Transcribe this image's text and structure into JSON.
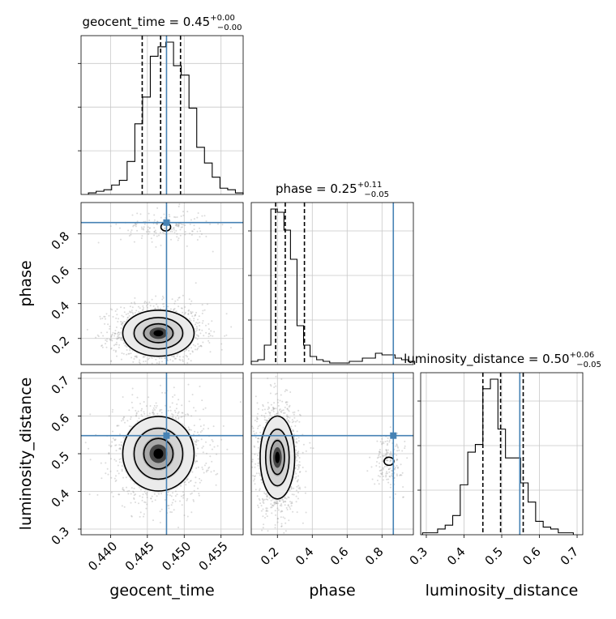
{
  "chart_data": {
    "type": "corner",
    "truth_color": "#4682b4",
    "parameters": [
      {
        "name": "geocent_time",
        "xlabel": "geocent_time",
        "ylabel": "",
        "title_main": "geocent_time = 0.45",
        "title_sup": "+0.00",
        "title_sub": "−0.00",
        "range": [
          0.436,
          0.458
        ],
        "ticks": [
          0.44,
          0.445,
          0.45,
          0.455
        ],
        "tick_labels": [
          "0.440",
          "0.445",
          "0.450",
          "0.455"
        ],
        "truth": 0.4476,
        "quantiles": [
          0.4443,
          0.4468,
          0.4495
        ],
        "hist_edges_start": 0.437,
        "hist_bin_width": 0.00105,
        "hist_counts": [
          1,
          2,
          3,
          6,
          9,
          21,
          45,
          62,
          88,
          94,
          97,
          82,
          76,
          55,
          30,
          20,
          11,
          4,
          3,
          1
        ]
      },
      {
        "name": "phase",
        "xlabel": "phase",
        "ylabel": "phase",
        "title_main": "phase = 0.25",
        "title_sup": "+0.11",
        "title_sub": "−0.05",
        "range": [
          0.05,
          0.98
        ],
        "ticks": [
          0.2,
          0.4,
          0.6,
          0.8
        ],
        "tick_labels": [
          "0.2",
          "0.4",
          "0.6",
          "0.8"
        ],
        "truth": 0.865,
        "quantiles": [
          0.19,
          0.245,
          0.355
        ],
        "hist_edges_start": 0.05,
        "hist_bin_width": 0.0375,
        "hist_counts": [
          2,
          3,
          12,
          96,
          94,
          83,
          65,
          24,
          12,
          5,
          3,
          2,
          1,
          1,
          1,
          2,
          2,
          4,
          4,
          7,
          6,
          6,
          4,
          3,
          2
        ]
      },
      {
        "name": "luminosity_distance",
        "xlabel": "luminosity_distance",
        "ylabel": "luminosity_distance",
        "title_main": "luminosity_distance = 0.50",
        "title_sup": "+0.06",
        "title_sub": "−0.05",
        "range": [
          0.285,
          0.715
        ],
        "ticks": [
          0.3,
          0.4,
          0.5,
          0.6,
          0.7
        ],
        "tick_labels": [
          "0.3",
          "0.4",
          "0.5",
          "0.6",
          "0.7"
        ],
        "truth": 0.548,
        "quantiles": [
          0.45,
          0.497,
          0.557
        ],
        "hist_edges_start": 0.29,
        "hist_bin_width": 0.02,
        "hist_counts": [
          1,
          1,
          3,
          5,
          10,
          26,
          43,
          47,
          76,
          81,
          55,
          40,
          40,
          27,
          17,
          7,
          4,
          3,
          1,
          1
        ]
      }
    ],
    "off_diagonal": [
      {
        "row": "phase",
        "col": "geocent_time",
        "density_peaks": [
          {
            "x": 0.4465,
            "y": 0.23,
            "sx": 0.0022,
            "sy": 0.06,
            "w": 1.0
          },
          {
            "x": 0.4475,
            "y": 0.84,
            "sx": 0.0022,
            "sy": 0.035,
            "w": 0.12
          }
        ]
      },
      {
        "row": "luminosity_distance",
        "col": "geocent_time",
        "density_peaks": [
          {
            "x": 0.4465,
            "y": 0.5,
            "sx": 0.0022,
            "sy": 0.045,
            "w": 1.0
          }
        ]
      },
      {
        "row": "luminosity_distance",
        "col": "phase",
        "density_peaks": [
          {
            "x": 0.2,
            "y": 0.49,
            "sx": 0.045,
            "sy": 0.05,
            "w": 1.0
          },
          {
            "x": 0.84,
            "y": 0.48,
            "sx": 0.03,
            "sy": 0.025,
            "w": 0.12
          }
        ]
      }
    ],
    "grid": true
  }
}
